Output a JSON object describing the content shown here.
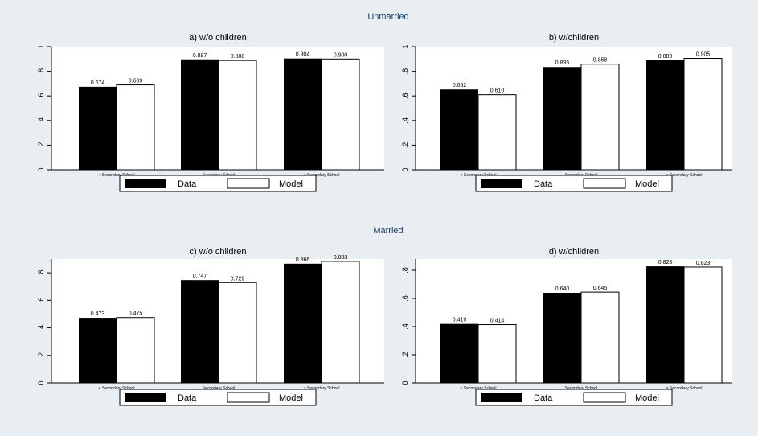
{
  "colors": {
    "background": "#e8eef2",
    "plot": "#ffffff",
    "data": "#000000",
    "model": "#ffffff",
    "group_title": "#1a3f6b"
  },
  "group_titles": [
    "Unmarried",
    "Married"
  ],
  "legend": {
    "data_label": "Data",
    "model_label": "Model"
  },
  "chart_data": [
    {
      "type": "bar",
      "title": "a) w/o children",
      "categories": [
        "< Secondary School",
        "Secondary School",
        "> Secondary School"
      ],
      "series": [
        {
          "name": "Data",
          "values": [
            0.674,
            0.897,
            0.904
          ],
          "labels": [
            "0.674",
            "0.897",
            "0.904"
          ]
        },
        {
          "name": "Model",
          "values": [
            0.689,
            0.888,
            0.9
          ],
          "labels": [
            "0.689",
            "0.888",
            "0.900"
          ]
        }
      ],
      "ylim": [
        0,
        1
      ],
      "yticks": [
        0,
        0.2,
        0.4,
        0.6,
        0.8,
        1
      ],
      "yticklabels": [
        "0",
        ".2",
        ".4",
        ".6",
        ".8",
        "1"
      ],
      "grid": false,
      "legend_position": "bottom"
    },
    {
      "type": "bar",
      "title": "b) w/children",
      "categories": [
        "< Secondary School",
        "Secondary School",
        "> Secondary School"
      ],
      "series": [
        {
          "name": "Data",
          "values": [
            0.652,
            0.835,
            0.889
          ],
          "labels": [
            "0.652",
            "0.835",
            "0.889"
          ]
        },
        {
          "name": "Model",
          "values": [
            0.61,
            0.858,
            0.905
          ],
          "labels": [
            "0.610",
            "0.858",
            "0.905"
          ]
        }
      ],
      "ylim": [
        0,
        1
      ],
      "yticks": [
        0,
        0.2,
        0.4,
        0.6,
        0.8,
        1
      ],
      "yticklabels": [
        "0",
        ".2",
        ".4",
        ".6",
        ".8",
        "1"
      ],
      "grid": false,
      "legend_position": "bottom"
    },
    {
      "type": "bar",
      "title": "c) w/o children",
      "categories": [
        "< Secondary School",
        "Secondary School",
        "> Secondary School"
      ],
      "series": [
        {
          "name": "Data",
          "values": [
            0.473,
            0.747,
            0.866
          ],
          "labels": [
            "0.473",
            "0.747",
            "0.866"
          ]
        },
        {
          "name": "Model",
          "values": [
            0.475,
            0.729,
            0.883
          ],
          "labels": [
            "0.475",
            "0.729",
            "0.883"
          ]
        }
      ],
      "ylim": [
        0,
        0.9
      ],
      "yticks": [
        0,
        0.2,
        0.4,
        0.6,
        0.8
      ],
      "yticklabels": [
        "0",
        ".2",
        ".4",
        ".6",
        ".8"
      ],
      "grid": false,
      "legend_position": "bottom"
    },
    {
      "type": "bar",
      "title": "d) w/children",
      "categories": [
        "< Secondary School",
        "Secondary School",
        "> Secondary School"
      ],
      "series": [
        {
          "name": "Data",
          "values": [
            0.419,
            0.64,
            0.828
          ],
          "labels": [
            "0.419",
            "0.640",
            "0.828"
          ]
        },
        {
          "name": "Model",
          "values": [
            0.414,
            0.645,
            0.823
          ],
          "labels": [
            "0.414",
            "0.645",
            "0.823"
          ]
        }
      ],
      "ylim": [
        0,
        0.88
      ],
      "yticks": [
        0,
        0.2,
        0.4,
        0.6,
        0.8
      ],
      "yticklabels": [
        "0",
        ".2",
        ".4",
        ".6",
        ".8"
      ],
      "grid": false,
      "legend_position": "bottom"
    }
  ]
}
